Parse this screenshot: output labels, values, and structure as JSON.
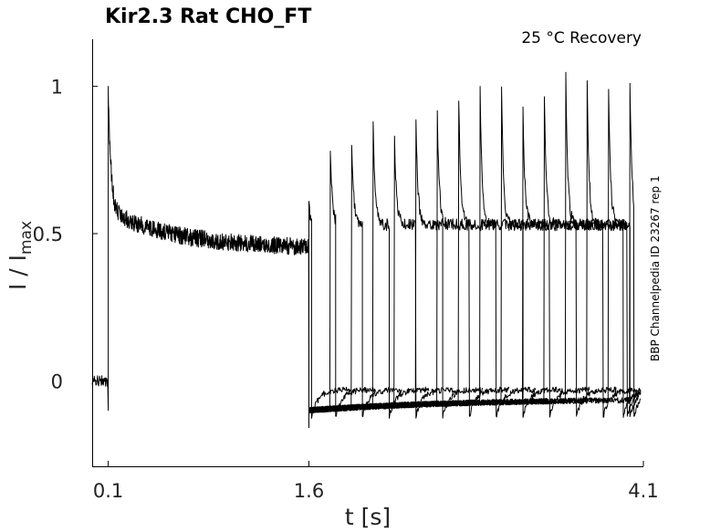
{
  "chart_data": {
    "type": "line",
    "title": "Kir2.3  Rat  CHO_FT",
    "condition": "25 °C  Recovery",
    "side_label": "BBP Channelpedia ID 23267 rep 1",
    "xlabel": "t [s]",
    "ylabel_main": "I / I",
    "ylabel_sub": "max",
    "x_ticks": [
      {
        "value": 0.1,
        "label": "0.1"
      },
      {
        "value": 1.6,
        "label": "1.6"
      },
      {
        "value": 4.1,
        "label": "4.1"
      }
    ],
    "y_ticks": [
      {
        "value": 0,
        "label": "0"
      },
      {
        "value": 0.5,
        "label": "0.5"
      },
      {
        "value": 1,
        "label": "1"
      }
    ],
    "xlim": [
      -0.02,
      4.1
    ],
    "ylim": [
      -0.29,
      1.16
    ],
    "grid": false,
    "color": "#000000",
    "prepulse": {
      "t_on": 0.1,
      "t_off": 1.6,
      "baseline": 0.0,
      "peak": 1.0,
      "steady": 0.45
    },
    "pulses": [
      {
        "t_on": 1.6,
        "t_off": 1.62,
        "peak": 0.59
      },
      {
        "t_on": 1.76,
        "t_off": 1.8,
        "peak": 0.78
      },
      {
        "t_on": 1.92,
        "t_off": 2.0,
        "peak": 0.8
      },
      {
        "t_on": 2.08,
        "t_off": 2.2,
        "peak": 0.88
      },
      {
        "t_on": 2.24,
        "t_off": 2.4,
        "peak": 0.83
      },
      {
        "t_on": 2.4,
        "t_off": 2.6,
        "peak": 0.88
      },
      {
        "t_on": 2.56,
        "t_off": 2.8,
        "peak": 0.9
      },
      {
        "t_on": 2.72,
        "t_off": 3.0,
        "peak": 0.95
      },
      {
        "t_on": 2.88,
        "t_off": 3.2,
        "peak": 1.0
      },
      {
        "t_on": 3.04,
        "t_off": 3.4,
        "peak": 0.98
      },
      {
        "t_on": 3.2,
        "t_off": 3.6,
        "peak": 0.93
      },
      {
        "t_on": 3.36,
        "t_off": 3.8,
        "peak": 0.96
      },
      {
        "t_on": 3.52,
        "t_off": 3.95,
        "peak": 1.04
      },
      {
        "t_on": 3.68,
        "t_off": 3.98,
        "peak": 1.0
      },
      {
        "t_on": 3.84,
        "t_off": 4.0,
        "peak": 0.99
      },
      {
        "t_on": 4.0,
        "t_off": 4.03,
        "peak": 1.01
      }
    ]
  }
}
